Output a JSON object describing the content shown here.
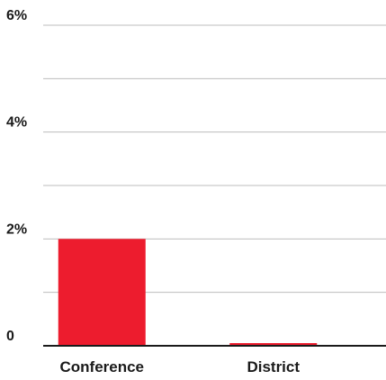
{
  "chart_data": {
    "type": "bar",
    "categories": [
      "Conference",
      "District"
    ],
    "values": [
      2.0,
      0.05
    ],
    "ylim": [
      0,
      6
    ],
    "yticks": [
      0,
      2,
      4,
      6
    ],
    "ytick_labels": [
      "0",
      "2%",
      "4%",
      "6%"
    ],
    "minor_gridlines": [
      1,
      3,
      5
    ],
    "grid": true,
    "legend": "none",
    "title": "",
    "xlabel": "",
    "ylabel": "",
    "colors": {
      "bar": "#ed1c2e",
      "gridline": "#bdbdbd",
      "baseline": "#1a1a1a",
      "text": "#1a1a1a"
    }
  }
}
